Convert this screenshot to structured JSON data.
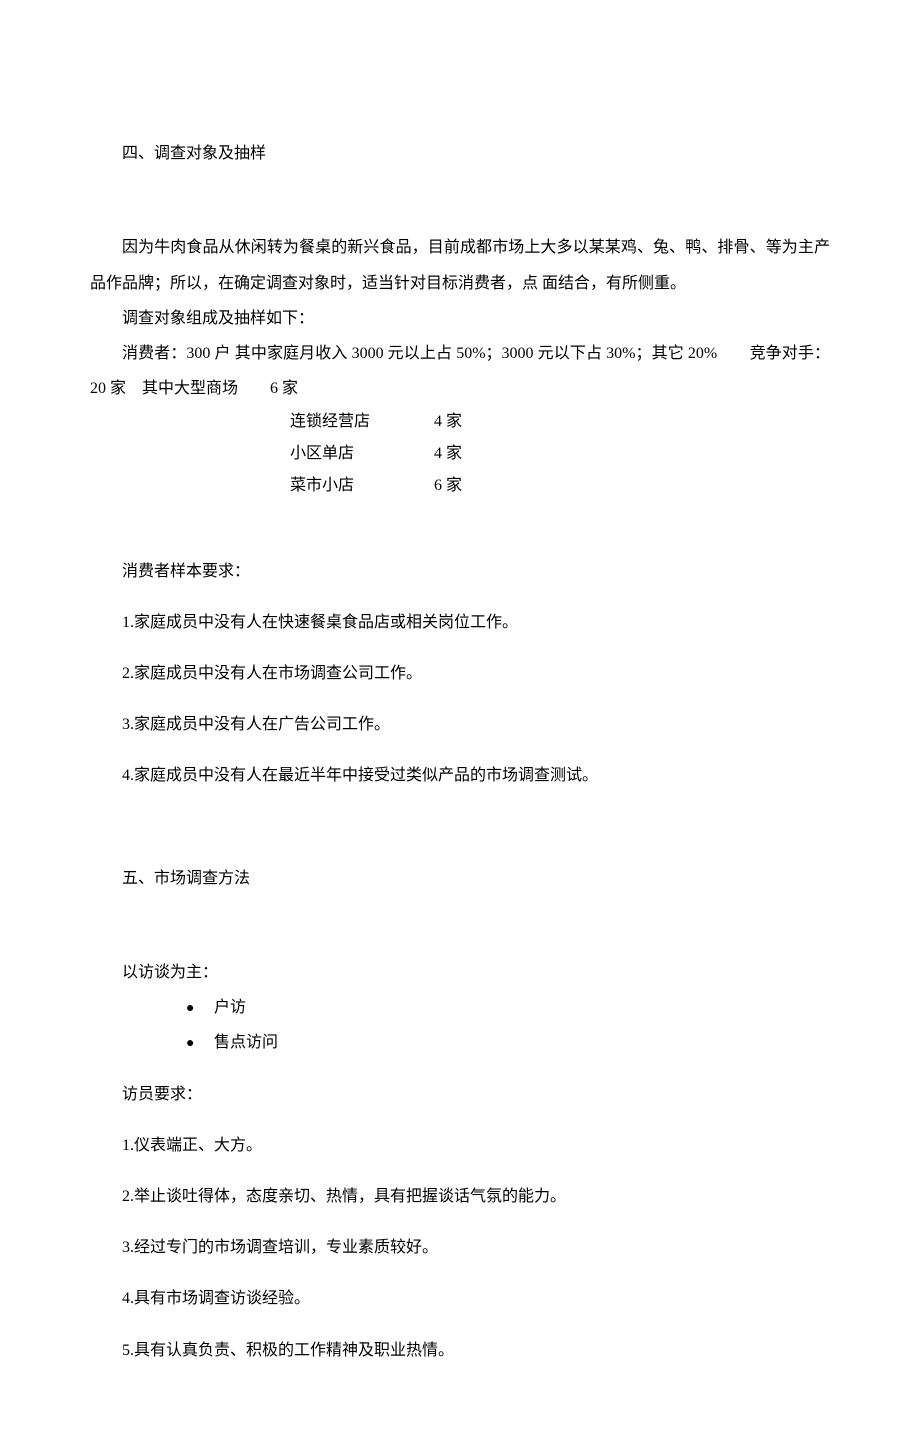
{
  "section4": {
    "heading": "四、调查对象及抽样",
    "p1": "因为牛肉食品从休闲转为餐桌的新兴食品，目前成都市场上大多以某某鸡、兔、鸭、排骨、等为主产品作品牌；所以，在确定调查对象时，适当针对目标消费者，点 面结合，有所侧重。",
    "p2": "调查对象组成及抽样如下：",
    "p3": "消费者：300 户 其中家庭月收入 3000 元以上占 50%；3000 元以下占 30%；其它 20%　　竞争对手：20 家　其中大型商场　　6 家",
    "table": [
      {
        "name": "连锁经营店",
        "count": "4 家"
      },
      {
        "name": "小区单店",
        "count": "4 家"
      },
      {
        "name": "菜市小店",
        "count": "6 家"
      }
    ],
    "sample_heading": "消费者样本要求：",
    "sample_items": [
      "1.家庭成员中没有人在快速餐桌食品店或相关岗位工作。",
      "2.家庭成员中没有人在市场调查公司工作。",
      "3.家庭成员中没有人在广告公司工作。",
      "4.家庭成员中没有人在最近半年中接受过类似产品的市场调查测试。"
    ]
  },
  "section5": {
    "heading": "五、市场调查方法",
    "p1": "以访谈为主：",
    "bullets": [
      "户访",
      "售点访问"
    ],
    "req_heading": "访员要求：",
    "req_items": [
      "1.仪表端正、大方。",
      "2.举止谈吐得体，态度亲切、热情，具有把握谈话气氛的能力。",
      "3.经过专门的市场调查培训，专业素质较好。",
      "4.具有市场调查访谈经验。",
      "5.具有认真负责、积极的工作精神及职业热情。"
    ]
  }
}
